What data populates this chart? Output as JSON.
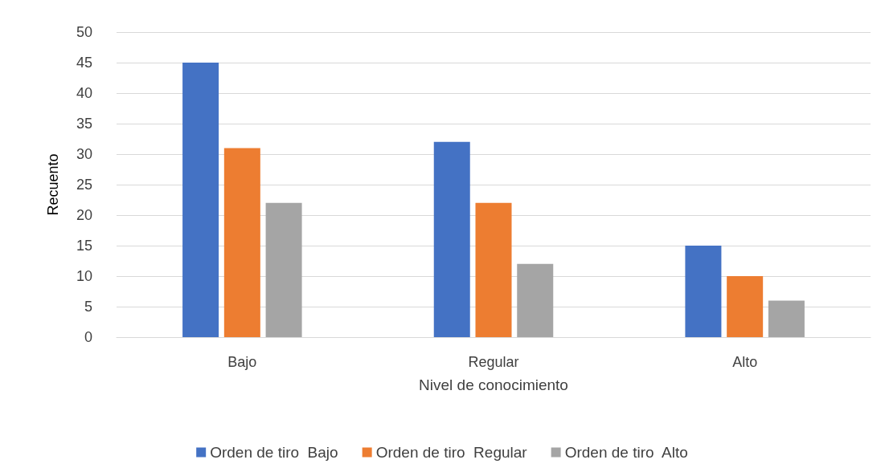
{
  "chart_data": {
    "type": "bar",
    "xlabel": "Nivel de conocimiento",
    "ylabel": "Recuento",
    "categories": [
      "Bajo",
      "Regular",
      "Alto"
    ],
    "series": [
      {
        "name": "Orden de tiro  Bajo",
        "color": "#4472c4",
        "values": [
          45,
          32,
          15
        ]
      },
      {
        "name": "Orden de tiro  Regular",
        "color": "#ed7d31",
        "values": [
          31,
          22,
          10
        ]
      },
      {
        "name": "Orden de tiro  Alto",
        "color": "#a5a5a5",
        "values": [
          22,
          12,
          6
        ]
      }
    ],
    "ylim": [
      0,
      50
    ],
    "yticks": [
      0,
      5,
      10,
      15,
      20,
      25,
      30,
      35,
      40,
      45,
      50
    ],
    "grid": "y",
    "legend": "bottom"
  }
}
